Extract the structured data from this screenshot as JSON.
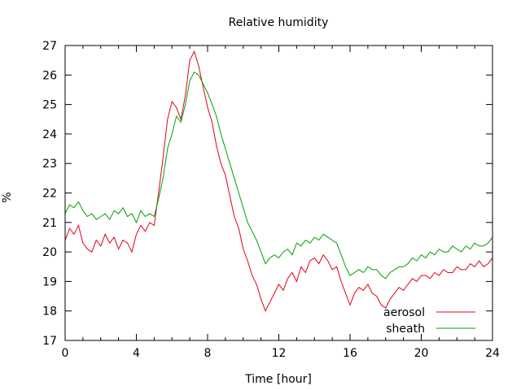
{
  "chart_data": {
    "type": "line",
    "title": "Relative humidity",
    "xlabel": "Time [hour]",
    "ylabel": "%",
    "xlim": [
      0,
      24
    ],
    "ylim": [
      17,
      27
    ],
    "x_ticks": [
      0,
      4,
      8,
      12,
      16,
      20,
      24
    ],
    "y_ticks": [
      17,
      18,
      19,
      20,
      21,
      22,
      23,
      24,
      25,
      26,
      27
    ],
    "grid": false,
    "legend_position": "bottom-right",
    "series": [
      {
        "name": "aerosol",
        "color": "#e0001a",
        "x": [
          0,
          0.25,
          0.5,
          0.75,
          1,
          1.25,
          1.5,
          1.75,
          2,
          2.25,
          2.5,
          2.75,
          3,
          3.25,
          3.5,
          3.75,
          4,
          4.25,
          4.5,
          4.75,
          5,
          5.25,
          5.5,
          5.75,
          6,
          6.25,
          6.5,
          6.75,
          7,
          7.25,
          7.5,
          7.75,
          8,
          8.25,
          8.5,
          8.75,
          9,
          9.25,
          9.5,
          9.75,
          10,
          10.25,
          10.5,
          10.75,
          11,
          11.25,
          11.5,
          11.75,
          12,
          12.25,
          12.5,
          12.75,
          13,
          13.25,
          13.5,
          13.75,
          14,
          14.25,
          14.5,
          14.75,
          15,
          15.25,
          15.5,
          15.75,
          16,
          16.25,
          16.5,
          16.75,
          17,
          17.25,
          17.5,
          17.75,
          18,
          18.25,
          18.5,
          18.75,
          19,
          19.25,
          19.5,
          19.75,
          20,
          20.25,
          20.5,
          20.75,
          21,
          21.25,
          21.5,
          21.75,
          22,
          22.25,
          22.5,
          22.75,
          23,
          23.25,
          23.5,
          23.75,
          24
        ],
        "y": [
          20.4,
          20.8,
          20.6,
          20.9,
          20.3,
          20.1,
          20.0,
          20.4,
          20.2,
          20.6,
          20.3,
          20.5,
          20.1,
          20.4,
          20.3,
          20.0,
          20.6,
          20.9,
          20.7,
          21.0,
          20.9,
          22.0,
          23.2,
          24.5,
          25.1,
          24.9,
          24.5,
          25.3,
          26.5,
          26.8,
          26.3,
          25.6,
          24.9,
          24.4,
          23.6,
          23.0,
          22.6,
          21.9,
          21.2,
          20.8,
          20.1,
          19.7,
          19.2,
          18.9,
          18.4,
          18.0,
          18.3,
          18.6,
          18.9,
          18.7,
          19.1,
          19.3,
          19.0,
          19.5,
          19.3,
          19.7,
          19.8,
          19.6,
          19.9,
          19.7,
          19.4,
          19.5,
          19.0,
          18.6,
          18.2,
          18.6,
          18.8,
          18.7,
          18.9,
          18.6,
          18.5,
          18.2,
          18.1,
          18.4,
          18.6,
          18.8,
          18.7,
          18.9,
          19.1,
          19.0,
          19.2,
          19.2,
          19.1,
          19.3,
          19.2,
          19.4,
          19.3,
          19.3,
          19.5,
          19.4,
          19.4,
          19.6,
          19.5,
          19.7,
          19.5,
          19.6,
          19.8
        ]
      },
      {
        "name": "sheath",
        "color": "#00a000",
        "x": [
          0,
          0.25,
          0.5,
          0.75,
          1,
          1.25,
          1.5,
          1.75,
          2,
          2.25,
          2.5,
          2.75,
          3,
          3.25,
          3.5,
          3.75,
          4,
          4.25,
          4.5,
          4.75,
          5,
          5.25,
          5.5,
          5.75,
          6,
          6.25,
          6.5,
          6.75,
          7,
          7.25,
          7.5,
          7.75,
          8,
          8.25,
          8.5,
          8.75,
          9,
          9.25,
          9.5,
          9.75,
          10,
          10.25,
          10.5,
          10.75,
          11,
          11.25,
          11.5,
          11.75,
          12,
          12.25,
          12.5,
          12.75,
          13,
          13.25,
          13.5,
          13.75,
          14,
          14.25,
          14.5,
          14.75,
          15,
          15.25,
          15.5,
          15.75,
          16,
          16.25,
          16.5,
          16.75,
          17,
          17.25,
          17.5,
          17.75,
          18,
          18.25,
          18.5,
          18.75,
          19,
          19.25,
          19.5,
          19.75,
          20,
          20.25,
          20.5,
          20.75,
          21,
          21.25,
          21.5,
          21.75,
          22,
          22.25,
          22.5,
          22.75,
          23,
          23.25,
          23.5,
          23.75,
          24
        ],
        "y": [
          21.3,
          21.6,
          21.5,
          21.7,
          21.4,
          21.2,
          21.3,
          21.1,
          21.2,
          21.3,
          21.1,
          21.4,
          21.3,
          21.5,
          21.2,
          21.3,
          21.0,
          21.4,
          21.2,
          21.3,
          21.2,
          21.8,
          22.5,
          23.5,
          24.0,
          24.6,
          24.4,
          25.0,
          25.8,
          26.1,
          26.0,
          25.7,
          25.4,
          25.0,
          24.6,
          24.0,
          23.5,
          23.0,
          22.5,
          22.0,
          21.5,
          21.0,
          20.7,
          20.4,
          20.0,
          19.6,
          19.8,
          19.9,
          19.8,
          20.0,
          20.1,
          19.9,
          20.3,
          20.2,
          20.4,
          20.3,
          20.5,
          20.4,
          20.6,
          20.5,
          20.4,
          20.3,
          19.9,
          19.5,
          19.2,
          19.3,
          19.4,
          19.3,
          19.5,
          19.4,
          19.4,
          19.2,
          19.1,
          19.3,
          19.4,
          19.5,
          19.5,
          19.6,
          19.8,
          19.7,
          19.9,
          19.8,
          20.0,
          19.9,
          20.1,
          20.0,
          20.0,
          20.2,
          20.1,
          20.0,
          20.2,
          20.1,
          20.3,
          20.2,
          20.2,
          20.3,
          20.5
        ]
      }
    ]
  }
}
